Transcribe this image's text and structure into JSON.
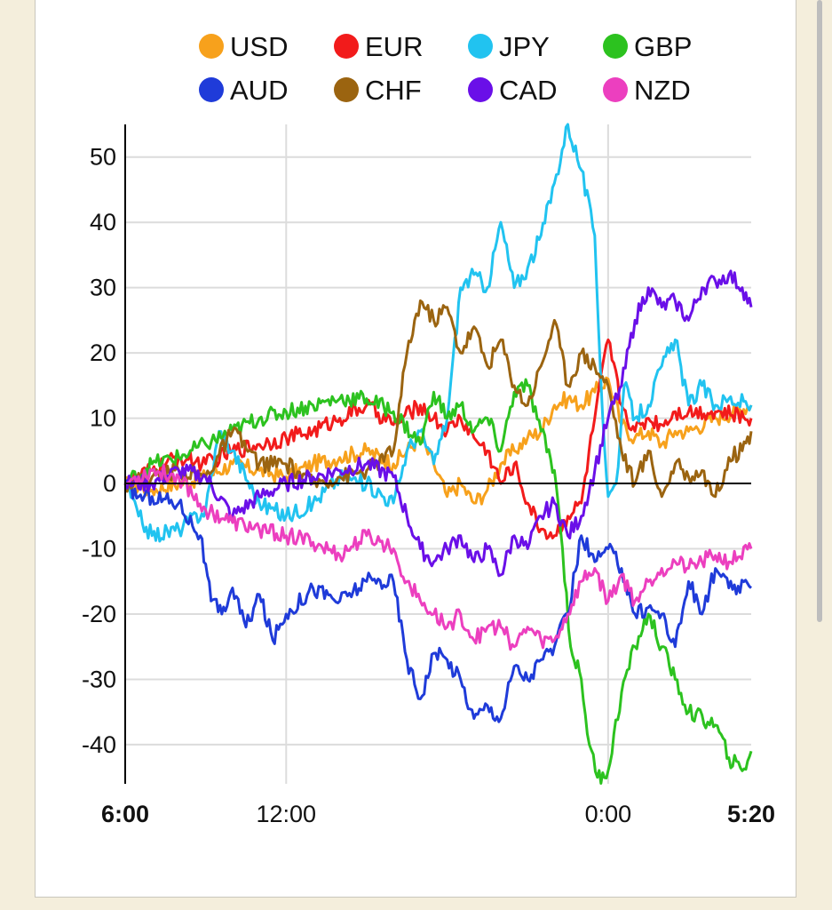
{
  "chart_data": {
    "type": "line",
    "title": "",
    "xlabel": "",
    "ylabel": "",
    "ylim": [
      -46,
      55
    ],
    "yticks": [
      50,
      40,
      30,
      20,
      10,
      0,
      -10,
      -20,
      -30,
      -40
    ],
    "ytick_labels": [
      "50",
      "40",
      "30",
      "20",
      "10",
      "0",
      "-10",
      "-20",
      "-30",
      "-40"
    ],
    "xlim": [
      6.0,
      29.333
    ],
    "xticks": [
      {
        "label": "6:00",
        "x": 6.0,
        "bold": true
      },
      {
        "label": "12:00",
        "x": 12.0,
        "bold": false
      },
      {
        "label": "0:00",
        "x": 24.0,
        "bold": false
      },
      {
        "label": "5:20",
        "x": 29.333,
        "bold": true
      }
    ],
    "grid": true,
    "legend_position": "top",
    "series": [
      {
        "name": "USD",
        "color": "#f7a11c",
        "x": [
          6.0,
          7.0,
          8.0,
          9.0,
          10.0,
          11.0,
          12.0,
          13.0,
          14.0,
          15.0,
          16.0,
          17.0,
          17.5,
          18.0,
          18.5,
          19.0,
          19.5,
          20.0,
          20.5,
          21.0,
          21.5,
          22.0,
          22.5,
          23.0,
          23.5,
          24.0,
          24.5,
          25.0,
          25.5,
          26.0,
          26.5,
          27.0,
          28.0,
          29.333
        ],
        "values": [
          0,
          -1,
          0,
          1,
          3,
          2,
          1,
          3,
          4,
          5,
          3,
          7,
          3,
          -2,
          0,
          -3,
          -1,
          3,
          5,
          7,
          8,
          12,
          13,
          12,
          14,
          16,
          9,
          7,
          8,
          6,
          8,
          8,
          10,
          12
        ]
      },
      {
        "name": "EUR",
        "color": "#f21b1b",
        "x": [
          6.0,
          7.0,
          8.0,
          9.0,
          10.0,
          11.0,
          12.0,
          13.0,
          14.0,
          15.0,
          16.0,
          17.0,
          17.5,
          18.0,
          18.5,
          19.0,
          19.5,
          20.0,
          20.5,
          21.0,
          21.5,
          22.0,
          22.5,
          23.0,
          23.5,
          24.0,
          24.5,
          25.0,
          25.5,
          26.0,
          26.5,
          27.0,
          28.0,
          29.333
        ],
        "values": [
          0,
          2,
          4,
          3,
          5,
          6,
          7,
          8,
          10,
          12,
          9,
          12,
          10,
          8,
          10,
          7,
          5,
          0,
          3,
          -3,
          -7,
          -8,
          -5,
          -3,
          10,
          22,
          12,
          8,
          10,
          9,
          11,
          11,
          11,
          10
        ]
      },
      {
        "name": "JPY",
        "color": "#21c3f0",
        "x": [
          6.0,
          6.5,
          7.0,
          8.0,
          9.0,
          9.5,
          10.0,
          11.0,
          12.0,
          13.0,
          14.0,
          15.0,
          16.0,
          16.5,
          17.0,
          17.5,
          18.0,
          18.5,
          19.0,
          19.5,
          20.0,
          20.5,
          21.0,
          21.5,
          22.0,
          22.5,
          23.0,
          23.5,
          23.8,
          24.0,
          24.3,
          24.6,
          25.0,
          25.5,
          26.0,
          26.5,
          27.0,
          27.5,
          28.0,
          28.5,
          29.333
        ],
        "values": [
          0,
          -5,
          -8,
          -7,
          -4,
          8,
          5,
          -3,
          -5,
          -3,
          1,
          0,
          -3,
          5,
          8,
          3,
          10,
          30,
          32,
          30,
          40,
          30,
          33,
          38,
          46,
          55,
          48,
          38,
          10,
          -2,
          0,
          15,
          10,
          12,
          18,
          22,
          12,
          15,
          12,
          13,
          12
        ]
      },
      {
        "name": "GBP",
        "color": "#2cc21f",
        "x": [
          6.0,
          7.0,
          8.0,
          9.0,
          10.0,
          11.0,
          12.0,
          13.0,
          14.0,
          15.0,
          16.0,
          17.0,
          17.5,
          18.0,
          18.5,
          19.0,
          19.5,
          20.0,
          20.5,
          21.0,
          21.5,
          22.0,
          22.3,
          22.6,
          23.0,
          23.3,
          23.6,
          24.0,
          24.5,
          25.0,
          25.5,
          26.0,
          26.5,
          27.0,
          28.0,
          28.5,
          29.0,
          29.333
        ],
        "values": [
          0,
          3,
          4,
          6,
          8,
          10,
          11,
          12,
          13,
          13,
          11,
          6,
          14,
          10,
          12,
          8,
          10,
          5,
          14,
          15,
          8,
          2,
          -10,
          -25,
          -30,
          -40,
          -45,
          -44,
          -32,
          -25,
          -20,
          -25,
          -30,
          -35,
          -37,
          -42,
          -44,
          -41
        ]
      },
      {
        "name": "AUD",
        "color": "#1f3bd9",
        "x": [
          6.0,
          6.5,
          7.0,
          8.0,
          8.8,
          9.2,
          9.6,
          10.0,
          10.5,
          11.0,
          11.5,
          12.0,
          13.0,
          14.0,
          15.0,
          16.0,
          16.5,
          17.0,
          17.5,
          18.0,
          18.5,
          19.0,
          19.5,
          20.0,
          20.5,
          21.0,
          21.5,
          22.0,
          22.5,
          23.0,
          23.5,
          24.0,
          24.5,
          25.0,
          25.5,
          26.0,
          26.5,
          27.0,
          27.5,
          28.0,
          28.5,
          29.333
        ],
        "values": [
          0,
          -2,
          -2,
          -3,
          -8,
          -18,
          -20,
          -16,
          -22,
          -17,
          -24,
          -20,
          -16,
          -18,
          -15,
          -15,
          -27,
          -33,
          -26,
          -27,
          -30,
          -36,
          -34,
          -36,
          -28,
          -30,
          -27,
          -25,
          -20,
          -8,
          -12,
          -10,
          -13,
          -20,
          -19,
          -20,
          -25,
          -15,
          -20,
          -13,
          -16,
          -16
        ]
      },
      {
        "name": "CHF",
        "color": "#9b6410",
        "x": [
          6.0,
          7.0,
          8.0,
          9.0,
          10.0,
          11.0,
          12.0,
          13.0,
          14.0,
          15.0,
          16.0,
          16.5,
          17.0,
          17.5,
          18.0,
          18.5,
          19.0,
          19.5,
          20.0,
          20.5,
          21.0,
          21.5,
          22.0,
          22.5,
          23.0,
          23.5,
          24.0,
          24.5,
          25.0,
          25.5,
          26.0,
          26.5,
          27.0,
          27.5,
          28.0,
          28.5,
          29.0,
          29.333
        ],
        "values": [
          0,
          1,
          2,
          1,
          8,
          3,
          3,
          0,
          1,
          2,
          5,
          20,
          28,
          25,
          27,
          20,
          24,
          18,
          22,
          15,
          12,
          18,
          25,
          15,
          20,
          18,
          15,
          5,
          0,
          5,
          -2,
          3,
          1,
          2,
          -2,
          4,
          5,
          8
        ]
      },
      {
        "name": "CAD",
        "color": "#6a0fe8",
        "x": [
          6.0,
          7.0,
          8.0,
          9.0,
          10.0,
          11.0,
          12.0,
          13.0,
          14.0,
          15.0,
          16.0,
          16.5,
          17.0,
          17.5,
          18.0,
          18.5,
          19.0,
          19.5,
          20.0,
          20.5,
          21.0,
          21.5,
          22.0,
          22.5,
          23.0,
          23.5,
          24.0,
          24.5,
          25.0,
          25.5,
          26.0,
          26.5,
          27.0,
          27.5,
          28.0,
          28.5,
          29.0,
          29.333
        ],
        "values": [
          0,
          0,
          2,
          1,
          -5,
          -2,
          0,
          1,
          2,
          3,
          1,
          -5,
          -10,
          -12,
          -10,
          -8,
          -12,
          -10,
          -14,
          -8,
          -10,
          -5,
          -3,
          -8,
          -5,
          2,
          10,
          15,
          25,
          30,
          27,
          28,
          25,
          30,
          31,
          32,
          30,
          27
        ]
      },
      {
        "name": "NZD",
        "color": "#ec3fbf",
        "x": [
          6.0,
          7.0,
          8.0,
          9.0,
          10.0,
          11.0,
          12.0,
          13.0,
          14.0,
          15.0,
          16.0,
          16.5,
          17.0,
          17.5,
          18.0,
          18.5,
          19.0,
          19.5,
          20.0,
          20.5,
          21.0,
          21.5,
          22.0,
          22.5,
          23.0,
          23.5,
          24.0,
          24.5,
          25.0,
          25.5,
          26.0,
          26.5,
          27.0,
          27.5,
          28.0,
          28.5,
          29.333
        ],
        "values": [
          0,
          2,
          1,
          -4,
          -6,
          -7,
          -8,
          -9,
          -11,
          -8,
          -10,
          -15,
          -18,
          -20,
          -22,
          -20,
          -24,
          -22,
          -22,
          -25,
          -22,
          -24,
          -24,
          -20,
          -15,
          -13,
          -18,
          -14,
          -18,
          -15,
          -13,
          -12,
          -13,
          -12,
          -11,
          -12,
          -10
        ]
      }
    ]
  }
}
